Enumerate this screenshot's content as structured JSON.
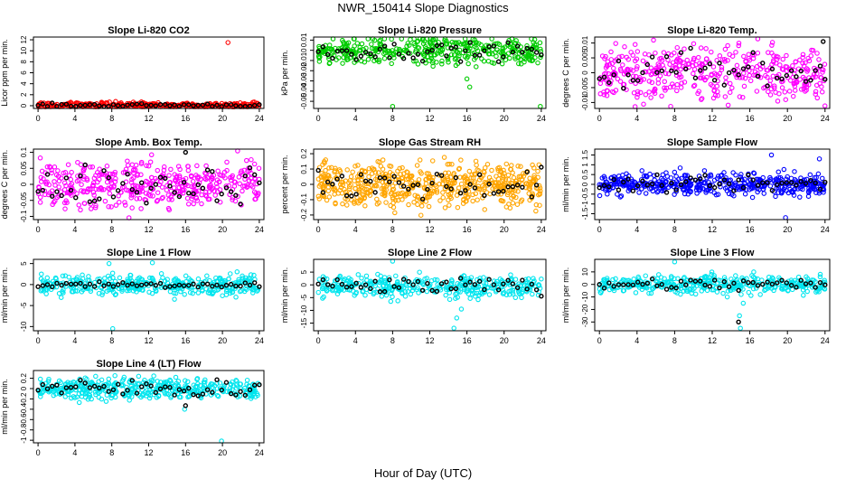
{
  "page": {
    "title": "NWR_150414  Slope Diagnostics",
    "xlabel": "Hour of Day (UTC)"
  },
  "chart_data": [
    {
      "type": "scatter",
      "title": "Slope Li-820 CO2",
      "ylabel": "Licor ppm per min.",
      "xlim": [
        -0.5,
        24.5
      ],
      "xticks": [
        0,
        4,
        8,
        12,
        16,
        20,
        24
      ],
      "ylim": [
        -0.5,
        12.5
      ],
      "yticks": [
        0,
        2,
        4,
        6,
        8,
        10,
        12
      ],
      "series": [
        {
          "name": "all",
          "color": "#ff0000",
          "center": 0.1,
          "spread": 0.25,
          "n": 320,
          "outliers": [
            [
              20.6,
              11.5
            ]
          ]
        },
        {
          "name": "cycle",
          "color": "#000000",
          "center": 0.1,
          "spread": 0.15,
          "n": 48,
          "outliers": []
        }
      ]
    },
    {
      "type": "scatter",
      "title": "Slope Li-820 Pressure",
      "ylabel": "kPa per min.",
      "xlim": [
        -0.5,
        24.5
      ],
      "xticks": [
        0,
        4,
        8,
        12,
        16,
        20,
        24
      ],
      "ylim": [
        -0.057,
        0.013
      ],
      "yticks": [
        0.01,
        0.0,
        -0.01,
        -0.02,
        -0.03,
        -0.04,
        -0.05
      ],
      "series": [
        {
          "name": "all",
          "color": "#00cc00",
          "center": -0.001,
          "spread": 0.007,
          "n": 400,
          "outliers": [
            [
              8.0,
              -0.055
            ],
            [
              16.3,
              -0.036
            ],
            [
              23.9,
              -0.055
            ],
            [
              16.0,
              -0.028
            ]
          ]
        },
        {
          "name": "cycle",
          "color": "#000000",
          "center": -0.001,
          "spread": 0.004,
          "n": 48,
          "outliers": []
        }
      ]
    },
    {
      "type": "scatter",
      "title": "Slope Li-820 Temp.",
      "ylabel": "degrees C per min.",
      "xlim": [
        -0.5,
        24.5
      ],
      "xticks": [
        0,
        4,
        8,
        12,
        16,
        20,
        24
      ],
      "ylim": [
        -0.012,
        0.012
      ],
      "yticks": [
        -0.01,
        -0.005,
        0.0,
        0.005,
        0.01
      ],
      "series": [
        {
          "name": "all",
          "color": "#ff00ff",
          "center": 0.0,
          "spread": 0.0045,
          "n": 420,
          "outliers": []
        },
        {
          "name": "cycle",
          "color": "#000000",
          "center": 0.0,
          "spread": 0.004,
          "n": 48,
          "outliers": [
            [
              23.8,
              0.0105
            ]
          ]
        }
      ]
    },
    {
      "type": "scatter",
      "title": "Slope Amb. Box Temp.",
      "ylabel": "degrees C per min.",
      "xlim": [
        -0.5,
        24.5
      ],
      "xticks": [
        0,
        4,
        8,
        12,
        16,
        20,
        24
      ],
      "ylim": [
        -0.11,
        0.11
      ],
      "yticks": [
        -0.1,
        -0.05,
        0.0,
        0.05,
        0.1
      ],
      "series": [
        {
          "name": "all",
          "color": "#ff00ff",
          "center": 0.0,
          "spread": 0.035,
          "n": 420,
          "outliers": []
        },
        {
          "name": "cycle",
          "color": "#000000",
          "center": 0.0,
          "spread": 0.03,
          "n": 48,
          "outliers": [
            [
              16.0,
              0.1
            ]
          ]
        }
      ]
    },
    {
      "type": "scatter",
      "title": "Slope Gas Stream RH",
      "ylabel": "percent per min.",
      "xlim": [
        -0.5,
        24.5
      ],
      "xticks": [
        0,
        4,
        8,
        12,
        16,
        20,
        24
      ],
      "ylim": [
        -0.23,
        0.23
      ],
      "yticks": [
        -0.2,
        -0.1,
        0.0,
        0.1,
        0.2
      ],
      "series": [
        {
          "name": "all",
          "color": "#ffa500",
          "center": 0.0,
          "spread": 0.075,
          "n": 560,
          "outliers": []
        },
        {
          "name": "cycle",
          "color": "#000000",
          "center": 0.0,
          "spread": 0.05,
          "n": 48,
          "outliers": []
        }
      ]
    },
    {
      "type": "scatter",
      "title": "Slope Sample Flow",
      "ylabel": "ml/min per min.",
      "xlim": [
        -0.5,
        24.5
      ],
      "xticks": [
        0,
        4,
        8,
        12,
        16,
        20,
        24
      ],
      "ylim": [
        -1.8,
        1.8
      ],
      "yticks": [
        -1.5,
        -1.0,
        -0.5,
        0.0,
        0.5,
        1.0,
        1.5
      ],
      "series": [
        {
          "name": "all",
          "color": "#0000ff",
          "center": 0.0,
          "spread": 0.28,
          "n": 460,
          "outliers": [
            [
              19.8,
              -1.7
            ],
            [
              18.3,
              1.5
            ],
            [
              23.4,
              1.3
            ]
          ]
        },
        {
          "name": "cycle",
          "color": "#000000",
          "center": 0.0,
          "spread": 0.18,
          "n": 48,
          "outliers": []
        }
      ]
    },
    {
      "type": "scatter",
      "title": "Slope Line 1 Flow",
      "ylabel": "ml/min per min.",
      "xlim": [
        -0.5,
        24.5
      ],
      "xticks": [
        0,
        4,
        8,
        12,
        16,
        20,
        24
      ],
      "ylim": [
        -11,
        6
      ],
      "yticks": [
        -10,
        -5,
        0,
        5
      ],
      "series": [
        {
          "name": "all",
          "color": "#00e5ee",
          "center": 0.0,
          "spread": 1.2,
          "n": 380,
          "outliers": [
            [
              8.1,
              -10.5
            ],
            [
              7.7,
              5.0
            ],
            [
              12.4,
              5.2
            ],
            [
              14.8,
              -3.5
            ]
          ]
        },
        {
          "name": "cycle",
          "color": "#000000",
          "center": 0.0,
          "spread": 0.4,
          "n": 48,
          "outliers": []
        }
      ]
    },
    {
      "type": "scatter",
      "title": "Slope Line 2 Flow",
      "ylabel": "ml/min per min.",
      "xlim": [
        -0.5,
        24.5
      ],
      "xticks": [
        0,
        4,
        8,
        12,
        16,
        20,
        24
      ],
      "ylim": [
        -18,
        10
      ],
      "yticks": [
        -15,
        -10,
        -5,
        0,
        5
      ],
      "series": [
        {
          "name": "all",
          "color": "#00e5ee",
          "center": -0.5,
          "spread": 2.0,
          "n": 380,
          "outliers": [
            [
              14.6,
              -17
            ],
            [
              14.9,
              -13
            ],
            [
              8.0,
              9.5
            ],
            [
              7.8,
              -6.5
            ],
            [
              15.4,
              -9.5
            ]
          ]
        },
        {
          "name": "cycle",
          "color": "#000000",
          "center": -0.5,
          "spread": 1.5,
          "n": 48,
          "outliers": []
        }
      ]
    },
    {
      "type": "scatter",
      "title": "Slope Line 3 Flow",
      "ylabel": "ml/min per min.",
      "xlim": [
        -0.5,
        24.5
      ],
      "xticks": [
        0,
        4,
        8,
        12,
        16,
        20,
        24
      ],
      "ylim": [
        -37,
        20
      ],
      "yticks": [
        -30,
        -20,
        -10,
        0,
        10
      ],
      "series": [
        {
          "name": "all",
          "color": "#00e5ee",
          "center": 0.0,
          "spread": 3.5,
          "n": 380,
          "outliers": [
            [
              15.0,
              -35
            ],
            [
              14.9,
              -25
            ],
            [
              15.3,
              -15
            ],
            [
              8.0,
              18
            ],
            [
              13.6,
              -10
            ]
          ]
        },
        {
          "name": "cycle",
          "color": "#000000",
          "center": 0.0,
          "spread": 2.5,
          "n": 48,
          "outliers": [
            [
              14.8,
              -30
            ]
          ]
        }
      ]
    },
    {
      "type": "scatter",
      "title": "Slope Line 4 (LT) Flow",
      "ylabel": "ml/min per min.",
      "xlim": [
        -0.5,
        24.5
      ],
      "xticks": [
        0,
        4,
        8,
        12,
        16,
        20,
        24
      ],
      "ylim": [
        -1.05,
        0.35
      ],
      "yticks": [
        -1.0,
        -0.8,
        -0.6,
        -0.4,
        -0.2,
        0.0,
        0.2
      ],
      "series": [
        {
          "name": "all",
          "color": "#00e5ee",
          "center": 0.0,
          "spread": 0.1,
          "n": 420,
          "outliers": [
            [
              19.9,
              -1.03
            ],
            [
              15.9,
              -0.4
            ]
          ]
        },
        {
          "name": "cycle",
          "color": "#000000",
          "center": 0.0,
          "spread": 0.09,
          "n": 48,
          "outliers": [
            [
              16.0,
              -0.33
            ]
          ]
        }
      ]
    }
  ]
}
